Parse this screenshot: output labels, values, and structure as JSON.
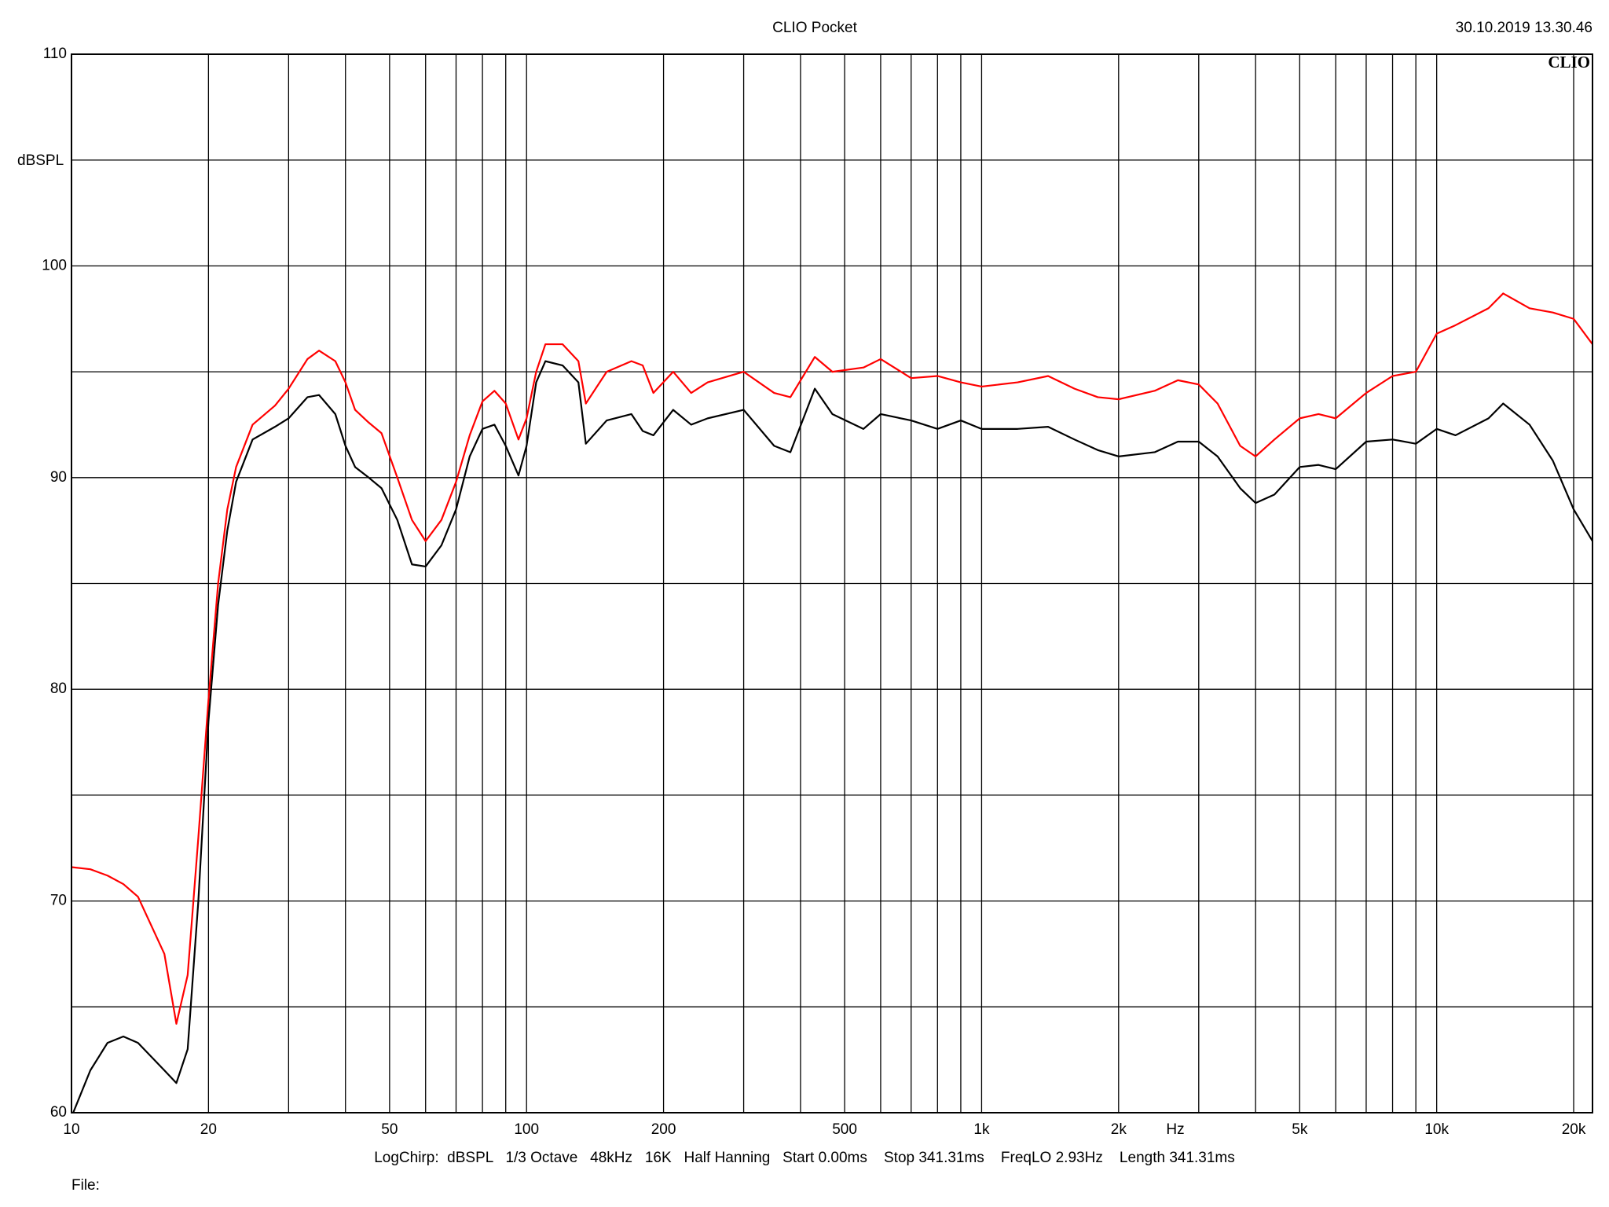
{
  "chart_data": {
    "type": "line",
    "title": "CLIO Pocket",
    "timestamp": "30.10.2019 13.30.46",
    "logo": "CLIO",
    "y_label": "dBSPL",
    "x_label": "Hz",
    "info": "LogChirp:  dBSPL   1/3 Octave   48kHz   16K   Half Hanning   Start 0.00ms    Stop 341.31ms    FreqLO 2.93Hz    Length 341.31ms",
    "file_label": "File:",
    "xscale": "log",
    "grid": true,
    "xlim": [
      10,
      22000
    ],
    "ylim": [
      60,
      110
    ],
    "yticks": [
      60,
      70,
      80,
      90,
      100,
      110
    ],
    "minor_yticks": [
      65,
      75,
      85,
      95,
      105
    ],
    "xticks": [
      10,
      20,
      50,
      100,
      200,
      500,
      {
        "value": 1000,
        "label": "1k"
      },
      {
        "value": 2000,
        "label": "2k"
      },
      {
        "value": 5000,
        "label": "5k"
      },
      {
        "value": 10000,
        "label": "10k"
      },
      {
        "value": 20000,
        "label": "20k"
      }
    ],
    "minor_xticks": [
      30,
      40,
      60,
      70,
      80,
      90,
      300,
      400,
      600,
      700,
      800,
      900,
      3000,
      4000,
      6000,
      7000,
      8000,
      9000
    ],
    "x": [
      10,
      11,
      12,
      13,
      14,
      16,
      17,
      18,
      19,
      20,
      21,
      22,
      23,
      25,
      28,
      30,
      33,
      35,
      38,
      40,
      42,
      45,
      48,
      52,
      56,
      60,
      65,
      70,
      75,
      80,
      85,
      90,
      96,
      100,
      105,
      110,
      120,
      130,
      135,
      150,
      170,
      180,
      190,
      210,
      230,
      250,
      300,
      350,
      380,
      430,
      470,
      550,
      600,
      700,
      800,
      900,
      1000,
      1200,
      1400,
      1600,
      1800,
      2000,
      2400,
      2700,
      3000,
      3300,
      3700,
      4000,
      4400,
      5000,
      5500,
      6000,
      7000,
      8000,
      9000,
      10000,
      11000,
      13000,
      14000,
      16000,
      18000,
      20000,
      22000
    ],
    "series": [
      {
        "color": "#ff0000",
        "values": [
          71.6,
          71.5,
          71.2,
          70.8,
          70.2,
          67.5,
          64.2,
          66.5,
          73,
          79.5,
          85,
          88.5,
          90.5,
          92.5,
          93.4,
          94.2,
          95.6,
          96,
          95.5,
          94.5,
          93.2,
          92.6,
          92.1,
          90,
          88,
          87,
          88,
          89.8,
          92,
          93.6,
          94.1,
          93.5,
          91.8,
          92.8,
          95,
          96.3,
          96.3,
          95.5,
          93.5,
          95.0,
          95.5,
          95.3,
          94.0,
          95.0,
          94.0,
          94.5,
          95.0,
          94.0,
          93.8,
          95.7,
          95.0,
          95.2,
          95.6,
          94.7,
          94.8,
          94.5,
          94.3,
          94.5,
          94.8,
          94.2,
          93.8,
          93.7,
          94.1,
          94.6,
          94.4,
          93.5,
          91.5,
          91.0,
          91.8,
          92.8,
          93.0,
          92.8,
          94.0,
          94.8,
          95.0,
          96.8,
          97.2,
          98.0,
          98.7,
          98.0,
          97.8,
          97.5,
          96.3
        ]
      },
      {
        "color": "#000000",
        "values": [
          59.8,
          62,
          63.3,
          63.6,
          63.3,
          62,
          61.4,
          63,
          70,
          78.5,
          84,
          87.5,
          89.8,
          91.8,
          92.4,
          92.8,
          93.8,
          93.9,
          93,
          91.5,
          90.5,
          90,
          89.5,
          88,
          85.9,
          85.8,
          86.8,
          88.5,
          91,
          92.3,
          92.5,
          91.5,
          90.1,
          91.5,
          94.5,
          95.5,
          95.3,
          94.5,
          91.6,
          92.7,
          93,
          92.2,
          92,
          93.2,
          92.5,
          92.8,
          93.2,
          91.5,
          91.2,
          94.2,
          93,
          92.3,
          93,
          92.7,
          92.3,
          92.7,
          92.3,
          92.3,
          92.4,
          91.8,
          91.3,
          91.0,
          91.2,
          91.7,
          91.7,
          91.0,
          89.5,
          88.8,
          89.2,
          90.5,
          90.6,
          90.4,
          91.7,
          91.8,
          91.6,
          92.3,
          92.0,
          92.8,
          93.5,
          92.5,
          90.8,
          88.5,
          87
        ]
      }
    ]
  }
}
